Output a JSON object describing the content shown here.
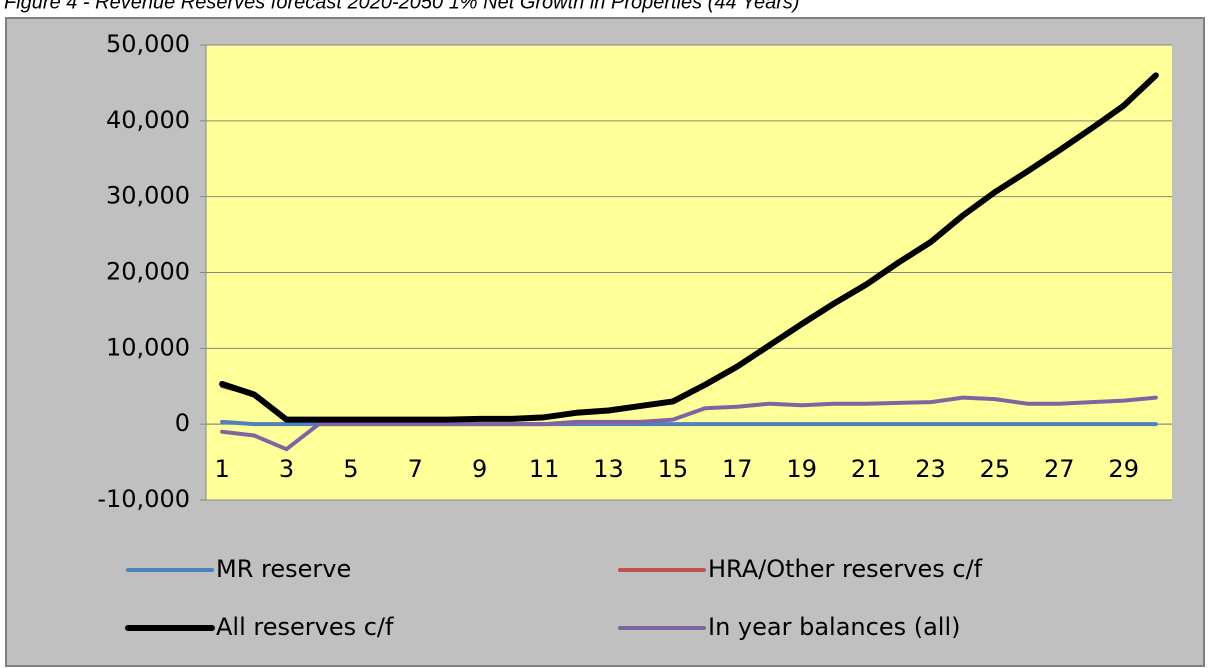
{
  "chart_data": {
    "type": "line",
    "title": "Figure 4 - Revenue Reserves forecast 2020-2050 1% Net Growth in Properties (44 Years)",
    "categories": [
      "1",
      null,
      "3",
      null,
      "5",
      null,
      "7",
      null,
      "9",
      null,
      "11",
      null,
      "13",
      null,
      "15",
      null,
      "17",
      null,
      "19",
      null,
      "21",
      null,
      "23",
      null,
      "25",
      null,
      "27",
      null,
      "29",
      null
    ],
    "series": [
      {
        "name": "MR reserve",
        "color": "#4f81bd",
        "values": [
          300,
          0,
          0,
          0,
          0,
          0,
          0,
          0,
          0,
          0,
          0,
          0,
          0,
          0,
          0,
          0,
          0,
          0,
          0,
          0,
          0,
          0,
          0,
          0,
          0,
          0,
          0,
          0,
          0,
          0
        ]
      },
      {
        "name": "HRA/Other reserves c/f",
        "color": "#c0504d",
        "values": [
          5000,
          3900,
          600,
          600,
          600,
          600,
          600,
          600,
          700,
          700,
          900,
          1500,
          1800,
          2400,
          3000,
          5200,
          7600,
          10400,
          13200,
          15900,
          18400,
          21300,
          24000,
          27500,
          30600,
          33300,
          36100,
          39000,
          42000,
          46000
        ]
      },
      {
        "name": "All reserves c/f",
        "color": "#000000",
        "values": [
          5300,
          3900,
          600,
          600,
          600,
          600,
          600,
          600,
          700,
          700,
          900,
          1500,
          1800,
          2400,
          3000,
          5200,
          7600,
          10400,
          13200,
          15900,
          18400,
          21300,
          24000,
          27500,
          30600,
          33300,
          36100,
          39000,
          42000,
          46000
        ]
      },
      {
        "name": "In year balances (all)",
        "color": "#8064a2",
        "values": [
          -1000,
          -1500,
          -3300,
          0,
          0,
          0,
          0,
          0,
          0,
          0,
          0,
          300,
          300,
          300,
          600,
          2100,
          2300,
          2700,
          2500,
          2700,
          2700,
          2800,
          2900,
          3500,
          3300,
          2700,
          2700,
          2900,
          3100,
          3500
        ]
      }
    ],
    "ylim": [
      -10000,
      50000
    ],
    "yticks": [
      {
        "value": -10000,
        "label": "-10,000"
      },
      0,
      {
        "value": 10000,
        "label": "10,000"
      },
      {
        "value": 20000,
        "label": "20,000"
      },
      {
        "value": 30000,
        "label": "30,000"
      },
      {
        "value": 40000,
        "label": "40,000"
      },
      {
        "value": 50000,
        "label": "50,000"
      }
    ],
    "grid": true
  }
}
